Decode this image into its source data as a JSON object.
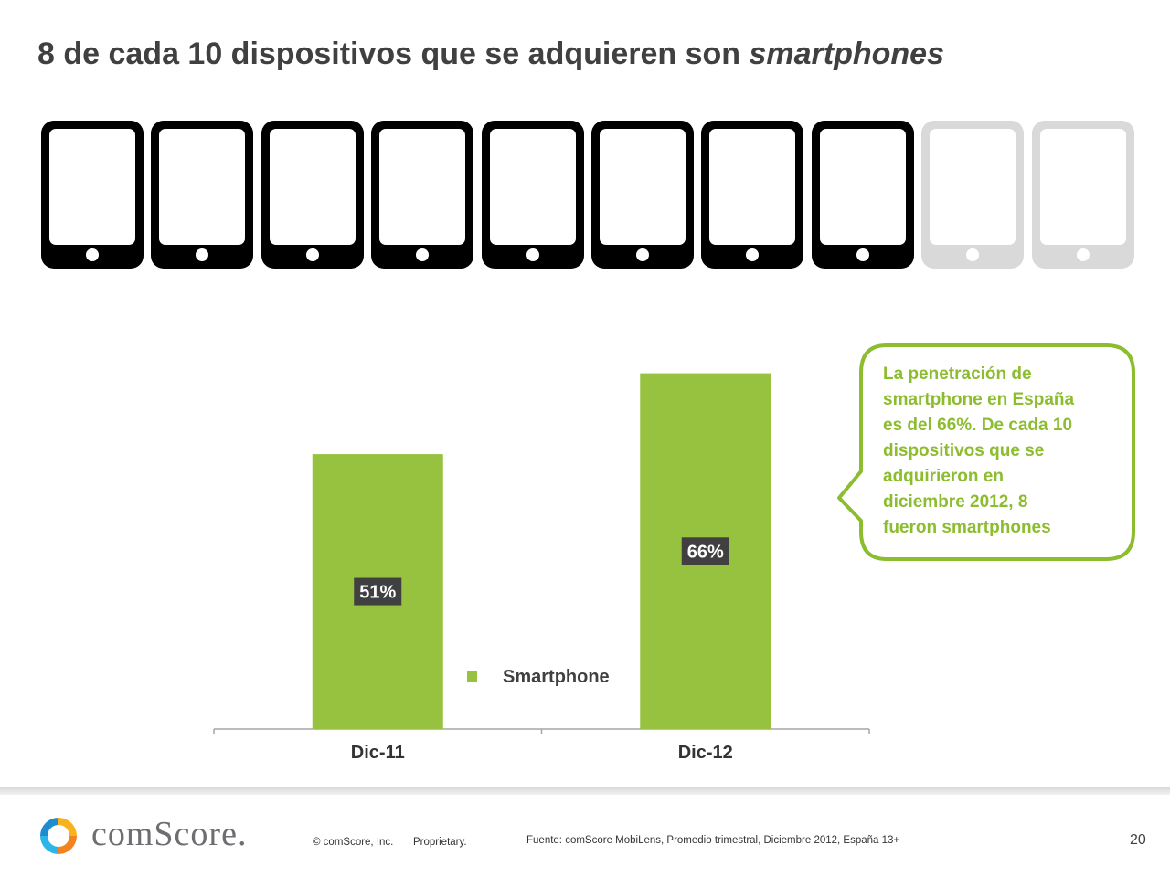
{
  "slide": {
    "title_main": "8 de cada 10 dispositivos que se adquieren son ",
    "title_emphasis": "smartphones"
  },
  "pictogram": {
    "total_devices": 10,
    "smartphone_devices": 8,
    "smartphone_color": "#000000",
    "other_color": "#d9d9d9",
    "icon": "smartphone-icon"
  },
  "callout": {
    "lines": [
      "La penetración de",
      "smartphone en España",
      "es del 66%. De cada 10",
      "dispositivos que se",
      "adquirieron en",
      "diciembre 2012, 8",
      "fueron smartphones"
    ],
    "color": "#8cbd2f"
  },
  "chart_data": {
    "type": "bar",
    "categories": [
      "Dic-11",
      "Dic-12"
    ],
    "series": [
      {
        "name": "Smartphone",
        "values": [
          51,
          66
        ],
        "color": "#97c23f"
      }
    ],
    "data_labels": [
      "51%",
      "66%"
    ],
    "legend": {
      "position": "center-bottom"
    },
    "ylim": [
      0,
      80
    ],
    "grid": false,
    "xlabel": "",
    "ylabel": "",
    "label_background": "#404040"
  },
  "footer": {
    "logo_text": "comScore.",
    "copyright": "© comScore, Inc.",
    "proprietary": "Proprietary.",
    "source": "Fuente: comScore MobiLens, Promedio trimestral, Diciembre  2012, España 13+",
    "page_number": "20"
  }
}
